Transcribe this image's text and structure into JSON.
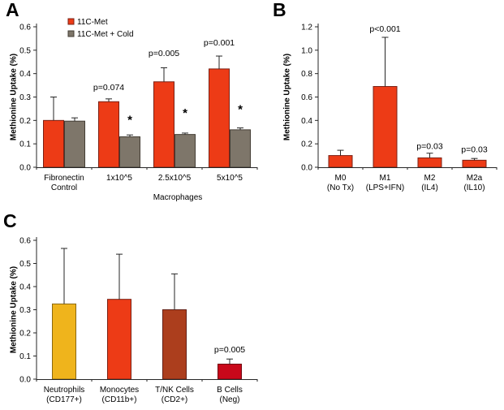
{
  "figure": {
    "background": "#ffffff",
    "axis_color": "#262626",
    "panel_letters": {
      "a": "A",
      "b": "B",
      "c": "C"
    }
  },
  "chart_data": [
    {
      "id": "A",
      "type": "bar",
      "ylabel": "Methionine Uptake (%)",
      "ylim": [
        0,
        0.6
      ],
      "ytick_step": 0.1,
      "ytick_decimals": 1,
      "grid": false,
      "categories": [
        [
          "Fibronectin",
          "Control"
        ],
        [
          "1x10^5"
        ],
        [
          "2.5x10^5"
        ],
        [
          "5x10^5"
        ]
      ],
      "group_label": "Macrophages",
      "group_label_category": 2,
      "legend": {
        "position": "top-left-inside",
        "items": [
          {
            "label": "11C-Met",
            "color": "#ed3b16",
            "border": "#7a2115"
          },
          {
            "label": "11C-Met + Cold",
            "color": "#7e766a",
            "border": "#433d34"
          }
        ]
      },
      "series": [
        {
          "name": "11C-Met",
          "color": "#ed3b16",
          "border": "#7a2115",
          "values": [
            0.2,
            0.28,
            0.365,
            0.42
          ],
          "errors": [
            0.1,
            0.012,
            0.06,
            0.055
          ]
        },
        {
          "name": "11C-Met + Cold",
          "color": "#7e766a",
          "border": "#433d34",
          "values": [
            0.197,
            0.13,
            0.14,
            0.16
          ],
          "errors": [
            0.014,
            0.008,
            0.006,
            0.008
          ]
        }
      ],
      "annotations": [
        {
          "text": "p=0.074",
          "series": 0,
          "category": 1,
          "y": 0.33,
          "style": "p"
        },
        {
          "text": "p=0.005",
          "series": 0,
          "category": 2,
          "y": 0.475,
          "style": "p"
        },
        {
          "text": "p=0.001",
          "series": 0,
          "category": 3,
          "y": 0.52,
          "style": "p"
        },
        {
          "text": "*",
          "series": 1,
          "category": 1,
          "y": 0.185,
          "style": "star"
        },
        {
          "text": "*",
          "series": 1,
          "category": 2,
          "y": 0.215,
          "style": "star"
        },
        {
          "text": "*",
          "series": 1,
          "category": 3,
          "y": 0.23,
          "style": "star"
        }
      ]
    },
    {
      "id": "B",
      "type": "bar",
      "ylabel": "Methionine Uptake (%)",
      "ylim": [
        0,
        1.2
      ],
      "ytick_step": 0.2,
      "ytick_decimals": 1,
      "grid": false,
      "categories": [
        [
          "M0",
          "(No Tx)"
        ],
        [
          "M1",
          "(LPS+IFN)"
        ],
        [
          "M2",
          "(IL4)"
        ],
        [
          "M2a",
          "(IL10)"
        ]
      ],
      "series": [
        {
          "name": "11C-Met",
          "color": "#ed3b16",
          "border": "#7a2115",
          "values": [
            0.1,
            0.69,
            0.08,
            0.06
          ],
          "errors": [
            0.045,
            0.42,
            0.04,
            0.015
          ]
        }
      ],
      "annotations": [
        {
          "text": "p<0.001",
          "series": 0,
          "category": 1,
          "y": 1.16,
          "style": "p"
        },
        {
          "text": "p=0.03",
          "series": 0,
          "category": 2,
          "y": 0.155,
          "style": "p"
        },
        {
          "text": "p=0.03",
          "series": 0,
          "category": 3,
          "y": 0.13,
          "style": "p"
        }
      ]
    },
    {
      "id": "C",
      "type": "bar",
      "ylabel": "Methionine Uptake (%)",
      "ylim": [
        0,
        0.6
      ],
      "ytick_step": 0.1,
      "ytick_decimals": 1,
      "grid": false,
      "categories": [
        [
          "Neutrophils",
          "(CD177+)"
        ],
        [
          "Monocytes",
          "(CD11b+)"
        ],
        [
          "T/NK Cells",
          "(CD2+)"
        ],
        [
          "B Cells",
          "(Neg)"
        ]
      ],
      "series": [
        {
          "name": "cell-types",
          "colors": [
            "#efb41c",
            "#ed3b16",
            "#ac3e1d",
            "#c9081a"
          ],
          "borders": [
            "#8a6810",
            "#7a2115",
            "#632017",
            "#700610"
          ],
          "values": [
            0.325,
            0.345,
            0.3,
            0.065
          ],
          "errors": [
            0.24,
            0.195,
            0.155,
            0.022
          ]
        }
      ],
      "annotations": [
        {
          "text": "p=0.005",
          "series": 0,
          "category": 3,
          "y": 0.115,
          "style": "p"
        }
      ]
    }
  ]
}
